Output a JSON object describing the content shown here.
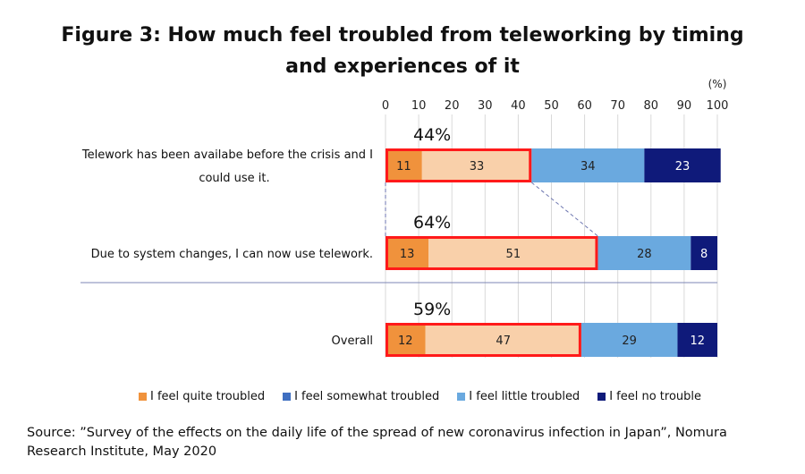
{
  "title_line1": "Figure 3: How much feel troubled from teleworking by timing",
  "title_line2": "and experiences of it",
  "chart_data": {
    "type": "bar",
    "orientation": "horizontal",
    "stacked": true,
    "unit_label": "(%)",
    "xlim": [
      0,
      100
    ],
    "x_ticks": [
      0,
      10,
      20,
      30,
      40,
      50,
      60,
      70,
      80,
      90,
      100
    ],
    "grid": true,
    "categories": [
      "Telework has been availabe before the crisis and I could use it.",
      "Due to system changes, I can now use telework.",
      "Overall"
    ],
    "category_lines": [
      [
        "Telework has been availabe before the crisis and I",
        "could use it."
      ],
      [
        "Due to system changes, I can now use telework."
      ],
      [
        "Overall"
      ]
    ],
    "series": [
      {
        "name": "I feel quite troubled",
        "color": "#f0923c",
        "values": [
          11,
          13,
          12
        ]
      },
      {
        "name": "I feel somewhat troubled",
        "color": "#f9d0aa",
        "values": [
          33,
          51,
          47
        ]
      },
      {
        "name": "I feel little troubled",
        "color": "#6aa9df",
        "values": [
          34,
          28,
          29
        ]
      },
      {
        "name": "I feel no trouble",
        "color": "#0f1a7a",
        "values": [
          23,
          8,
          12
        ]
      }
    ],
    "legend_colors": [
      "#f0923c",
      "#3f6fc1",
      "#6aa9df",
      "#0f1a7a"
    ],
    "annotations": [
      "44%",
      "64%",
      "59%"
    ],
    "highlight_color": "#ff1a1a",
    "legend_position": "bottom"
  },
  "source": "Source: ”Survey of the effects on the daily life of the spread of new coronavirus infection in Japan”, Nomura Research Institute,  May 2020"
}
